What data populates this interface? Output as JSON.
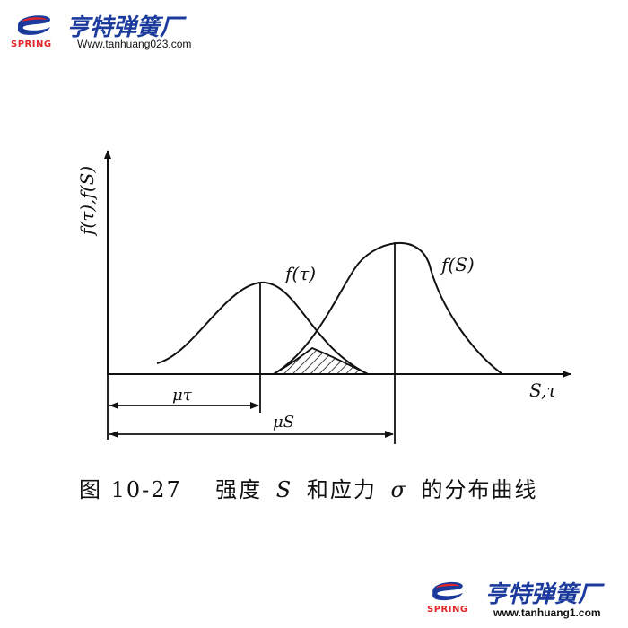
{
  "logo_top": {
    "brand_word": "SPRING",
    "company_name": "亨特弹簧厂",
    "url": "Www.tanhuang023.com",
    "icon": "spring-logo-icon",
    "colors": {
      "brand_blue": "#1b3a9c",
      "brand_red": "#e0262a"
    }
  },
  "logo_bottom": {
    "brand_word": "SPRING",
    "company_name": "亨特弹簧厂",
    "url": "www.tanhuang1.com",
    "icon": "spring-logo-icon"
  },
  "diagram": {
    "y_axis_label": "f(τ),f(S)",
    "x_axis_label": "S,τ",
    "curve_tau_label": "f(τ)",
    "curve_s_label": "f(S)",
    "mu_tau_label": "μτ",
    "mu_s_label": "μS",
    "interference_region": "shaded"
  },
  "caption": {
    "figure_no": "图 10-27",
    "text_1": "强度",
    "symbol_s": "S",
    "text_2": "和应力",
    "symbol_sigma": "σ",
    "text_3": "的分布曲线"
  }
}
